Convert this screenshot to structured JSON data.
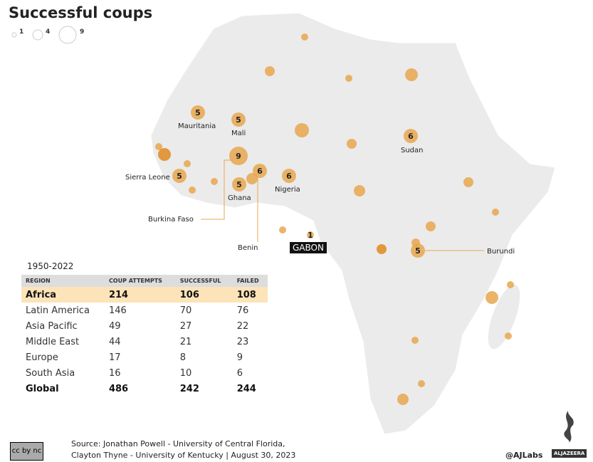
{
  "title": "Successful coups",
  "legend": [
    {
      "value": "1"
    },
    {
      "value": "4"
    },
    {
      "value": "9"
    }
  ],
  "bubble_color": "#e8a74f",
  "map_labels": [
    {
      "country": "Mauritania",
      "value": "5"
    },
    {
      "country": "Mali",
      "value": "5"
    },
    {
      "country": "Sudan",
      "value": "6"
    },
    {
      "country": "Burkina Faso",
      "value": "9"
    },
    {
      "country": "Benin",
      "value": "6"
    },
    {
      "country": "Nigeria",
      "value": "6"
    },
    {
      "country": "Sierra Leone",
      "value": "5"
    },
    {
      "country": "Ghana",
      "value": "5"
    },
    {
      "country": "GABON",
      "value": "1"
    },
    {
      "country": "Burundi",
      "value": "5"
    }
  ],
  "table": {
    "period": "1950-2022",
    "headers": [
      "REGION",
      "COUP ATTEMPTS",
      "SUCCESSFUL",
      "FAILED"
    ],
    "rows": [
      [
        "Africa",
        "214",
        "106",
        "108"
      ],
      [
        "Latin America",
        "146",
        "70",
        "76"
      ],
      [
        "Asia Pacific",
        "49",
        "27",
        "22"
      ],
      [
        "Middle East",
        "44",
        "21",
        "23"
      ],
      [
        "Europe",
        "17",
        "8",
        "9"
      ],
      [
        "South Asia",
        "16",
        "10",
        "6"
      ],
      [
        "Global",
        "486",
        "242",
        "244"
      ]
    ]
  },
  "footer": {
    "license": "cc by nc sa",
    "source_line1": "Source: Jonathan Powell - University of Central Florida,",
    "source_line2": "Clayton Thyne - University of Kentucky  |  August 30, 2023",
    "handle": "@AJLabs",
    "brand": "ALJAZEERA"
  }
}
